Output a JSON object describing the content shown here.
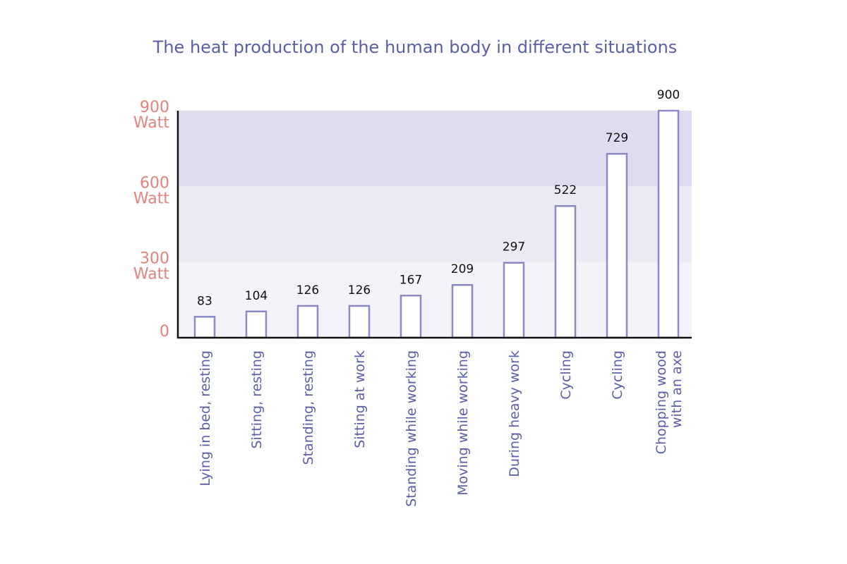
{
  "chart_data": {
    "type": "bar",
    "title": "The heat production of the human body in different situations",
    "categories": [
      [
        "Lying in bed, resting"
      ],
      [
        "Sitting, resting"
      ],
      [
        "Standing, resting"
      ],
      [
        "Sitting at work"
      ],
      [
        "Standing while working"
      ],
      [
        "Moving while working"
      ],
      [
        "During heavy work"
      ],
      [
        "Cycling"
      ],
      [
        "Cycling"
      ],
      [
        "Chopping wood",
        "with an axe"
      ]
    ],
    "values": [
      83,
      104,
      126,
      126,
      167,
      209,
      297,
      522,
      729,
      900
    ],
    "y_ticks": [
      {
        "value": 0,
        "lines": [
          "0"
        ]
      },
      {
        "value": 300,
        "lines": [
          "300",
          "Watt"
        ]
      },
      {
        "value": 600,
        "lines": [
          "600",
          "Watt"
        ]
      },
      {
        "value": 900,
        "lines": [
          "900",
          "Watt"
        ]
      }
    ],
    "ylim": [
      0,
      900
    ],
    "bands": [
      {
        "from": 0,
        "to": 300,
        "color": "#f4f3f9"
      },
      {
        "from": 300,
        "to": 600,
        "color": "#ebeaf4"
      },
      {
        "from": 600,
        "to": 900,
        "color": "#dedcee"
      }
    ],
    "bar_fill": "#ffffff",
    "bar_stroke": "#8c8ac6",
    "axis_color": "#111111",
    "title_color": "#5b5fa8",
    "tick_color": "#e4827b",
    "category_color": "#5b5fa8",
    "grid": false,
    "legend": "none"
  }
}
